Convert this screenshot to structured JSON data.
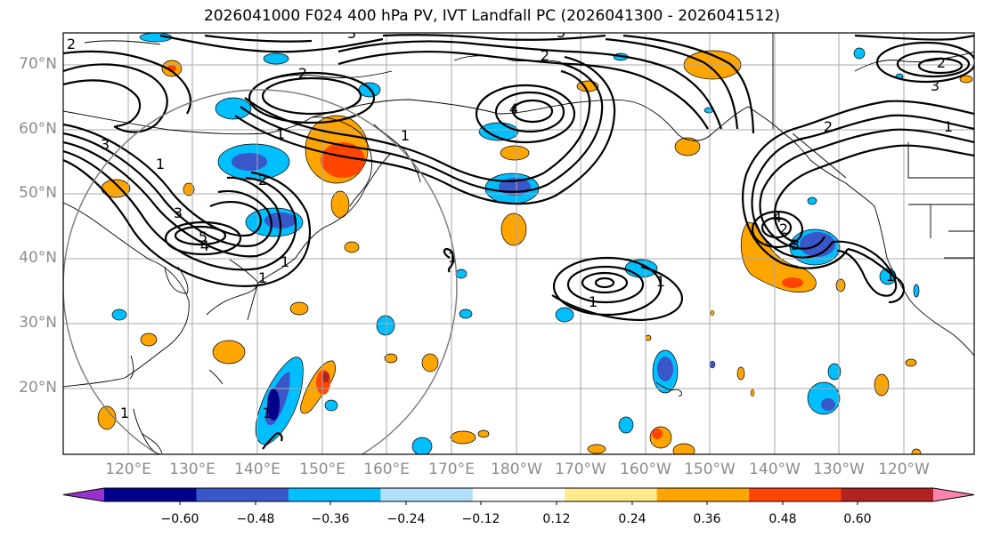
{
  "title": "2026041000 F024 400 hPa PV, IVT Landfall PC (2026041300 - 2026041512)",
  "lat_labels": [
    "70°N",
    "60°N",
    "50°N",
    "40°N",
    "30°N",
    "20°N"
  ],
  "lon_labels": [
    "120°E",
    "130°E",
    "140°E",
    "150°E",
    "160°E",
    "170°E",
    "180°W",
    "170°W",
    "160°W",
    "150°W",
    "140°W",
    "130°W",
    "120°W"
  ],
  "colorbar": {
    "ticks": [
      "−0.60",
      "−0.48",
      "−0.36",
      "−0.24",
      "−0.12",
      "0.12",
      "0.24",
      "0.36",
      "0.48",
      "0.60"
    ],
    "colors": [
      "#9932cc",
      "#00008b",
      "#3a57c9",
      "#00bfff",
      "#b0e0fa",
      "#ffffff",
      "#ffe98a",
      "#ffa500",
      "#ff4500",
      "#b22222",
      "#ff85b0"
    ]
  },
  "contour_labels": [
    "1",
    "1",
    "1",
    "1",
    "1",
    "2",
    "2",
    "2",
    "3",
    "3",
    "3",
    "4",
    "4",
    "5",
    "1",
    "1",
    "2",
    "3",
    "1",
    "1",
    "1",
    "2",
    "3",
    "4",
    "2",
    "3",
    "1",
    "1",
    "2"
  ]
}
